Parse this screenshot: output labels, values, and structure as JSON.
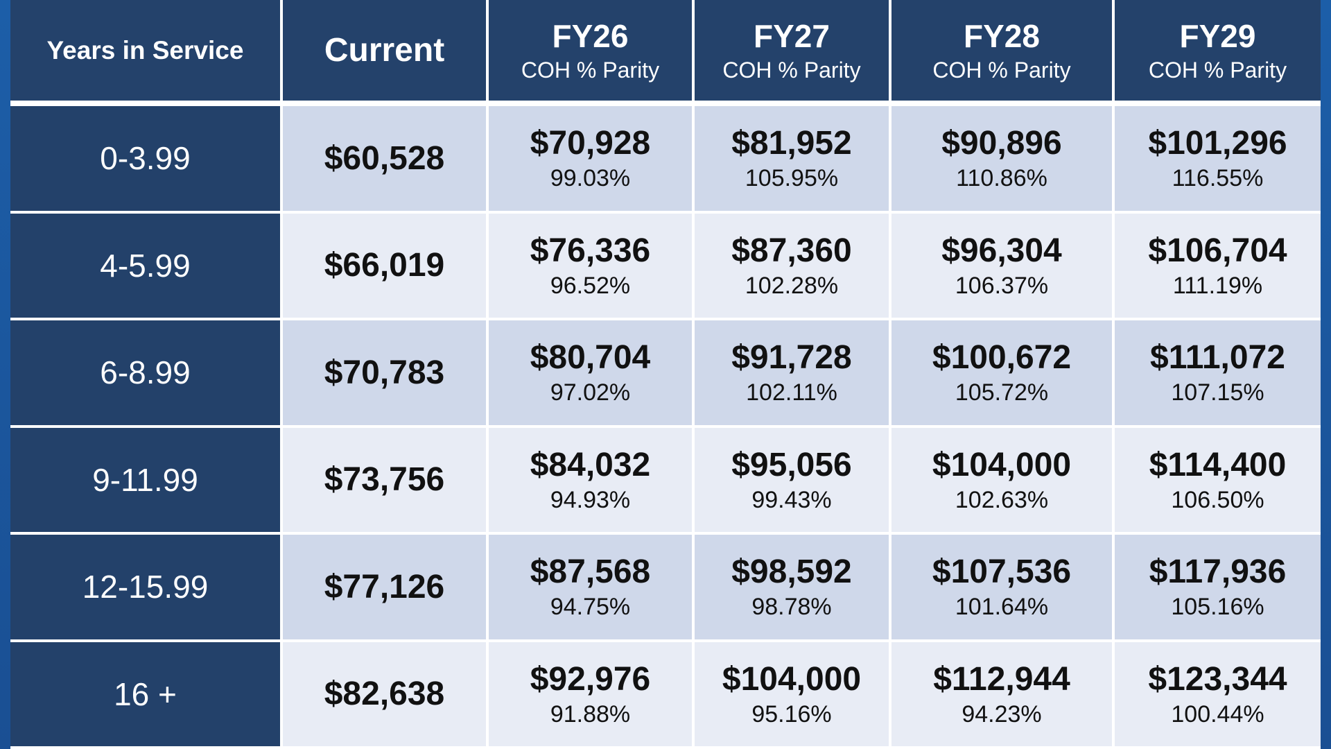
{
  "header": {
    "years_label": "Years in Service",
    "current_label": "Current",
    "columns": [
      {
        "title": "FY26",
        "subtitle": "COH % Parity"
      },
      {
        "title": "FY27",
        "subtitle": "COH % Parity"
      },
      {
        "title": "FY28",
        "subtitle": "COH % Parity"
      },
      {
        "title": "FY29",
        "subtitle": "COH % Parity"
      }
    ]
  },
  "table": {
    "rows": [
      {
        "years": "0-3.99",
        "current": "$60,528",
        "cells": [
          {
            "amount": "$70,928",
            "pct": "99.03%"
          },
          {
            "amount": "$81,952",
            "pct": "105.95%"
          },
          {
            "amount": "$90,896",
            "pct": "110.86%"
          },
          {
            "amount": "$101,296",
            "pct": "116.55%"
          }
        ]
      },
      {
        "years": "4-5.99",
        "current": "$66,019",
        "cells": [
          {
            "amount": "$76,336",
            "pct": "96.52%"
          },
          {
            "amount": "$87,360",
            "pct": "102.28%"
          },
          {
            "amount": "$96,304",
            "pct": "106.37%"
          },
          {
            "amount": "$106,704",
            "pct": "111.19%"
          }
        ]
      },
      {
        "years": "6-8.99",
        "current": "$70,783",
        "cells": [
          {
            "amount": "$80,704",
            "pct": "97.02%"
          },
          {
            "amount": "$91,728",
            "pct": "102.11%"
          },
          {
            "amount": "$100,672",
            "pct": "105.72%"
          },
          {
            "amount": "$111,072",
            "pct": "107.15%"
          }
        ]
      },
      {
        "years": "9-11.99",
        "current": "$73,756",
        "cells": [
          {
            "amount": "$84,032",
            "pct": "94.93%"
          },
          {
            "amount": "$95,056",
            "pct": "99.43%"
          },
          {
            "amount": "$104,000",
            "pct": "102.63%"
          },
          {
            "amount": "$114,400",
            "pct": "106.50%"
          }
        ]
      },
      {
        "years": "12-15.99",
        "current": "$77,126",
        "cells": [
          {
            "amount": "$87,568",
            "pct": "94.75%"
          },
          {
            "amount": "$98,592",
            "pct": "98.78%"
          },
          {
            "amount": "$107,536",
            "pct": "101.64%"
          },
          {
            "amount": "$117,936",
            "pct": "105.16%"
          }
        ]
      },
      {
        "years": "16 +",
        "current": "$82,638",
        "cells": [
          {
            "amount": "$92,976",
            "pct": "91.88%"
          },
          {
            "amount": "$104,000",
            "pct": "95.16%"
          },
          {
            "amount": "$112,944",
            "pct": "94.23%"
          },
          {
            "amount": "$123,344",
            "pct": "100.44%"
          }
        ]
      }
    ]
  }
}
